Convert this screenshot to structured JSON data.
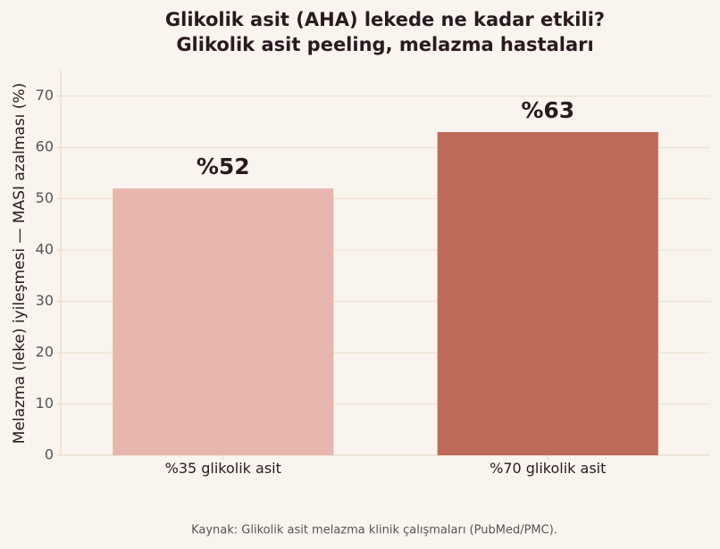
{
  "chart_data": {
    "type": "bar",
    "title": "Glikolik asit (AHA) lekede ne kadar etkili?",
    "subtitle": "Glikolik asit peeling, melazma hastaları",
    "y_label": "Melazma (leke) iyileşmesi — MASI azalması (%)",
    "categories": [
      "%35 glikolik asit",
      "%70 glikolik asit"
    ],
    "values": [
      52,
      63
    ],
    "value_labels": [
      "%52",
      "%63"
    ],
    "colors": [
      "#e8b6ae",
      "#bf6b5a"
    ],
    "ylim": [
      0,
      75
    ],
    "yticks": [
      0,
      10,
      20,
      30,
      40,
      50,
      60,
      70
    ],
    "grid": true,
    "source": "Kaynak: Glikolik asit melazma klinik çalışmaları (PubMed/PMC)."
  }
}
